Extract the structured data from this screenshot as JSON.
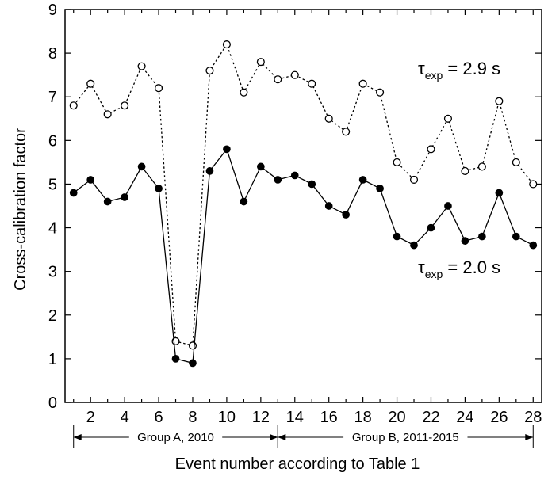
{
  "chart_data": {
    "type": "line",
    "title": "",
    "xlabel": "Event number according to Table 1",
    "ylabel": "Cross-calibration factor",
    "xlim": [
      0.5,
      28.5
    ],
    "ylim": [
      0,
      9
    ],
    "x_ticks": [
      2,
      4,
      6,
      8,
      10,
      12,
      14,
      16,
      18,
      20,
      22,
      24,
      26,
      28
    ],
    "y_ticks": [
      0,
      1,
      2,
      3,
      4,
      5,
      6,
      7,
      8,
      9
    ],
    "grid": false,
    "x": [
      1,
      2,
      3,
      4,
      5,
      6,
      7,
      8,
      9,
      10,
      11,
      12,
      13,
      14,
      15,
      16,
      17,
      18,
      19,
      20,
      21,
      22,
      23,
      24,
      25,
      26,
      27,
      28
    ],
    "series": [
      {
        "name": "τexp = 2.9 s",
        "label_main": "τ",
        "label_sub": "exp",
        "label_rest": " = 2.9 s",
        "style": "dotted",
        "marker": "open-circle",
        "values": [
          6.8,
          7.3,
          6.6,
          6.8,
          7.7,
          7.2,
          1.4,
          1.3,
          7.6,
          8.2,
          7.1,
          7.8,
          7.4,
          7.5,
          7.3,
          6.5,
          6.2,
          7.3,
          7.1,
          5.5,
          5.1,
          5.8,
          6.5,
          5.3,
          5.4,
          6.9,
          5.5,
          5.0
        ]
      },
      {
        "name": "τexp = 2.0 s",
        "label_main": "τ",
        "label_sub": "exp",
        "label_rest": " = 2.0 s",
        "style": "solid",
        "marker": "filled-circle",
        "values": [
          4.8,
          5.1,
          4.6,
          4.7,
          5.4,
          4.9,
          1.0,
          0.9,
          5.3,
          5.8,
          4.6,
          5.4,
          5.1,
          5.2,
          5.0,
          4.5,
          4.3,
          5.1,
          4.9,
          3.8,
          3.6,
          4.0,
          4.5,
          3.7,
          3.8,
          4.8,
          3.8,
          3.6
        ]
      }
    ],
    "groups": [
      {
        "label": "Group A, 2010",
        "from": 1,
        "to": 13
      },
      {
        "label": "Group B, 2011-2015",
        "from": 13,
        "to": 28
      }
    ]
  }
}
